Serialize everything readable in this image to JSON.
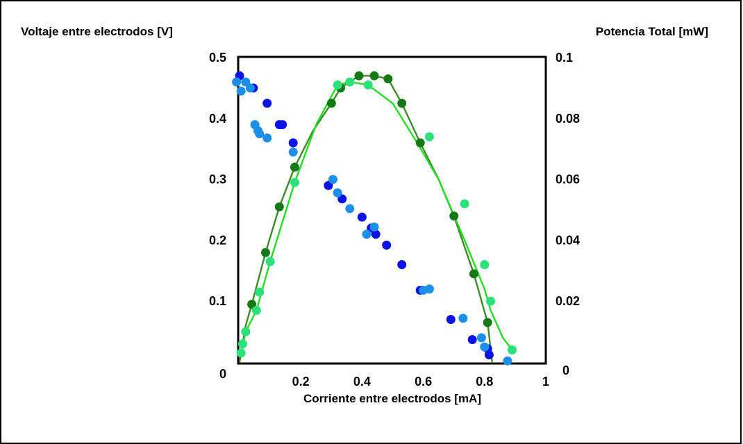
{
  "chart_data": {
    "type": "scatter",
    "ylabel_left": "Voltaje entre electrodos [V]",
    "ylabel_right": "Potencia Total [mW]",
    "xlabel": "Corriente entre electrodos [mA]",
    "xlim": [
      0,
      1
    ],
    "ylim_left": [
      0,
      0.5
    ],
    "ylim_right": [
      0,
      0.1
    ],
    "x_ticks": [
      "0",
      "0.2",
      "0.4",
      "0.6",
      "0.8",
      "1"
    ],
    "y_left_ticks": [
      "0",
      "0.1",
      "0.2",
      "0.3",
      "0.4",
      "0.5"
    ],
    "y_right_ticks": [
      "0",
      "0.02",
      "0.04",
      "0.06",
      "0.08",
      "0.1"
    ],
    "grid": false,
    "colors": {
      "voltage_dark": "#0a12e6",
      "voltage_light": "#1d8fea",
      "power_dark": "#157a15",
      "power_light": "#2ce07a",
      "curve_dark": "#3d8a2a",
      "curve_light": "#22dd22"
    },
    "series": [
      {
        "axis": "left",
        "color_key": "voltage_dark",
        "x": [
          0.0,
          0.045,
          0.09,
          0.13,
          0.14,
          0.175,
          0.29,
          0.335,
          0.4,
          0.43,
          0.445,
          0.48,
          0.53,
          0.59,
          0.69,
          0.76,
          0.81,
          0.815
        ],
        "y": [
          0.47,
          0.45,
          0.425,
          0.39,
          0.39,
          0.36,
          0.29,
          0.268,
          0.238,
          0.22,
          0.21,
          0.192,
          0.16,
          0.118,
          0.07,
          0.037,
          0.022,
          0.012
        ]
      },
      {
        "axis": "left",
        "color_key": "voltage_light",
        "x": [
          -0.01,
          0.005,
          0.02,
          0.035,
          0.05,
          0.06,
          0.065,
          0.09,
          0.175,
          0.305,
          0.32,
          0.36,
          0.415,
          0.44,
          0.6,
          0.62,
          0.73,
          0.79,
          0.8,
          0.875
        ],
        "y": [
          0.46,
          0.445,
          0.46,
          0.45,
          0.39,
          0.38,
          0.375,
          0.368,
          0.345,
          0.3,
          0.278,
          0.252,
          0.21,
          0.222,
          0.118,
          0.12,
          0.072,
          0.04,
          0.025,
          0.002
        ]
      },
      {
        "axis": "right",
        "color_key": "power_dark",
        "x": [
          0.04,
          0.085,
          0.13,
          0.18,
          0.3,
          0.33,
          0.39,
          0.44,
          0.485,
          0.53,
          0.59,
          0.7,
          0.765,
          0.81
        ],
        "y": [
          0.019,
          0.036,
          0.051,
          0.064,
          0.085,
          0.09,
          0.094,
          0.094,
          0.093,
          0.085,
          0.072,
          0.048,
          0.029,
          0.013
        ]
      },
      {
        "axis": "right",
        "color_key": "power_light",
        "x": [
          0.005,
          0.01,
          0.02,
          0.055,
          0.065,
          0.1,
          0.18,
          0.32,
          0.36,
          0.42,
          0.62,
          0.735,
          0.8,
          0.82,
          0.89
        ],
        "y": [
          0.003,
          0.006,
          0.01,
          0.017,
          0.023,
          0.033,
          0.059,
          0.091,
          0.092,
          0.091,
          0.074,
          0.052,
          0.032,
          0.02,
          0.004
        ]
      },
      {
        "axis": "right",
        "color_key": "curve_dark",
        "line": true,
        "x": [
          0.0,
          0.02,
          0.04,
          0.085,
          0.13,
          0.18,
          0.24,
          0.3,
          0.33,
          0.39,
          0.44,
          0.485,
          0.53,
          0.59,
          0.65,
          0.7,
          0.765,
          0.81,
          0.825
        ],
        "y": [
          0.0,
          0.012,
          0.019,
          0.036,
          0.051,
          0.064,
          0.076,
          0.085,
          0.09,
          0.094,
          0.094,
          0.093,
          0.085,
          0.072,
          0.06,
          0.048,
          0.029,
          0.013,
          0.0
        ]
      },
      {
        "axis": "right",
        "color_key": "curve_light",
        "line": true,
        "x": [
          0.005,
          0.02,
          0.055,
          0.1,
          0.18,
          0.25,
          0.32,
          0.36,
          0.42,
          0.5,
          0.58,
          0.65,
          0.735,
          0.8,
          0.82,
          0.86,
          0.89
        ],
        "y": [
          0.003,
          0.01,
          0.017,
          0.033,
          0.059,
          0.078,
          0.091,
          0.092,
          0.091,
          0.085,
          0.072,
          0.06,
          0.04,
          0.024,
          0.017,
          0.008,
          0.004
        ]
      }
    ]
  }
}
